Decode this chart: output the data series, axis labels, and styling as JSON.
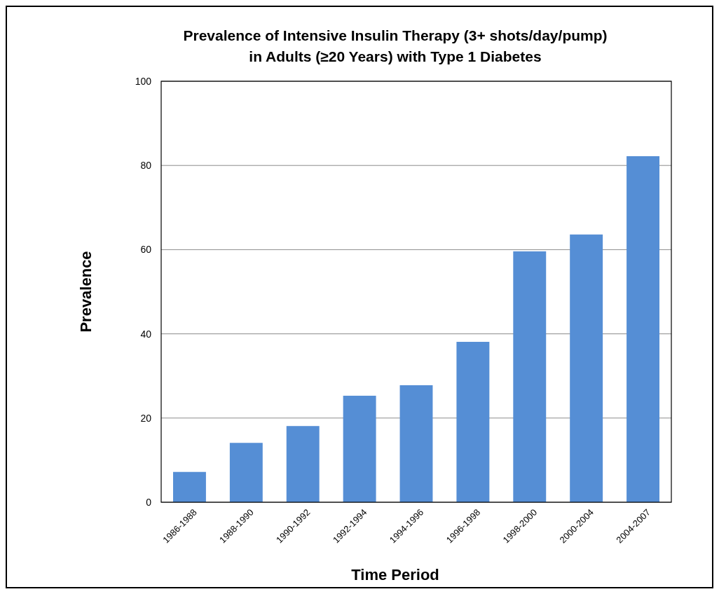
{
  "chart_data": {
    "type": "bar",
    "title": "Prevalence of Intensive Insulin Therapy (3+ shots/day/pump)\nin Adults (≥20 Years) with Type 1 Diabetes",
    "xlabel": "Time Period",
    "ylabel": "Prevalence",
    "categories": [
      "1986-1988",
      "1988-1990",
      "1990-1992",
      "1992-1994",
      "1994-1996",
      "1996-1998",
      "1998-2000",
      "2000-2004",
      "2004-2007"
    ],
    "values": [
      7.2,
      14.1,
      18.1,
      25.3,
      27.8,
      38.1,
      59.6,
      63.6,
      82.2
    ],
    "color": "#558ed5",
    "ylim": [
      0,
      100
    ],
    "yticks": [
      0,
      20,
      40,
      60,
      80,
      100
    ],
    "grid": "y"
  }
}
